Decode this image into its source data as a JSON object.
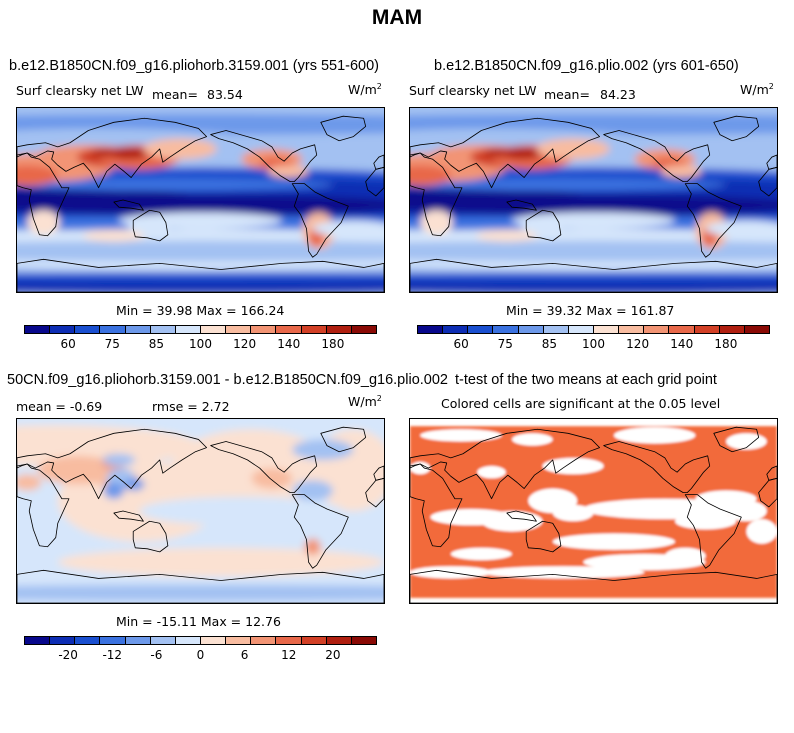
{
  "page_title": "MAM",
  "palettes": {
    "abs": [
      "#08088c",
      "#0d2db4",
      "#1a4fd0",
      "#3b72e0",
      "#6d99ea",
      "#a3c1f2",
      "#d6e6fb",
      "#fbe1d2",
      "#f8bca0",
      "#f29474",
      "#e8684a",
      "#d24026",
      "#b01f10",
      "#8a0a05"
    ],
    "diff": [
      "#08088c",
      "#0d2db4",
      "#1a4fd0",
      "#3b72e0",
      "#6d99ea",
      "#a3c1f2",
      "#d6e6fb",
      "#fbe1d2",
      "#f8bca0",
      "#f29474",
      "#e8684a",
      "#d24026",
      "#b01f10",
      "#8a0a05"
    ],
    "sig": "#f26b3a",
    "land_line": "#000000"
  },
  "panels": [
    {
      "title": "b.e12.B1850CN.f09_g16.pliohorb.3159.001 (yrs 551-600)",
      "left_label": "Surf clearsky net LW",
      "mean_label": "mean=",
      "mean_value": "83.54",
      "unit": "W/m",
      "unit_sup": "2",
      "stats": "Min =  39.98 Max = 166.24",
      "colorbar_ticks": [
        "60",
        "75",
        "85",
        "100",
        "120",
        "140",
        "180"
      ]
    },
    {
      "title": "b.e12.B1850CN.f09_g16.plio.002 (yrs 601-650)",
      "left_label": "Surf clearsky net LW",
      "mean_label": "mean=",
      "mean_value": "84.23",
      "unit": "W/m",
      "unit_sup": "2",
      "stats": "Min =  39.32 Max = 161.87",
      "colorbar_ticks": [
        "60",
        "75",
        "85",
        "100",
        "120",
        "140",
        "180"
      ]
    },
    {
      "title": "50CN.f09_g16.pliohorb.3159.001 - b.e12.B1850CN.f09_g16.plio.002",
      "mean_text": "mean =  -0.69",
      "rmse_text": "rmse =   2.72",
      "unit": "W/m",
      "unit_sup": "2",
      "stats": "Min = -15.11 Max =  12.76",
      "colorbar_ticks": [
        "-20",
        "-12",
        "-6",
        "0",
        "6",
        "12",
        "20"
      ]
    },
    {
      "title": "t-test of the two means at each grid point",
      "subtitle": "Colored cells are significant at the 0.05 level"
    }
  ]
}
